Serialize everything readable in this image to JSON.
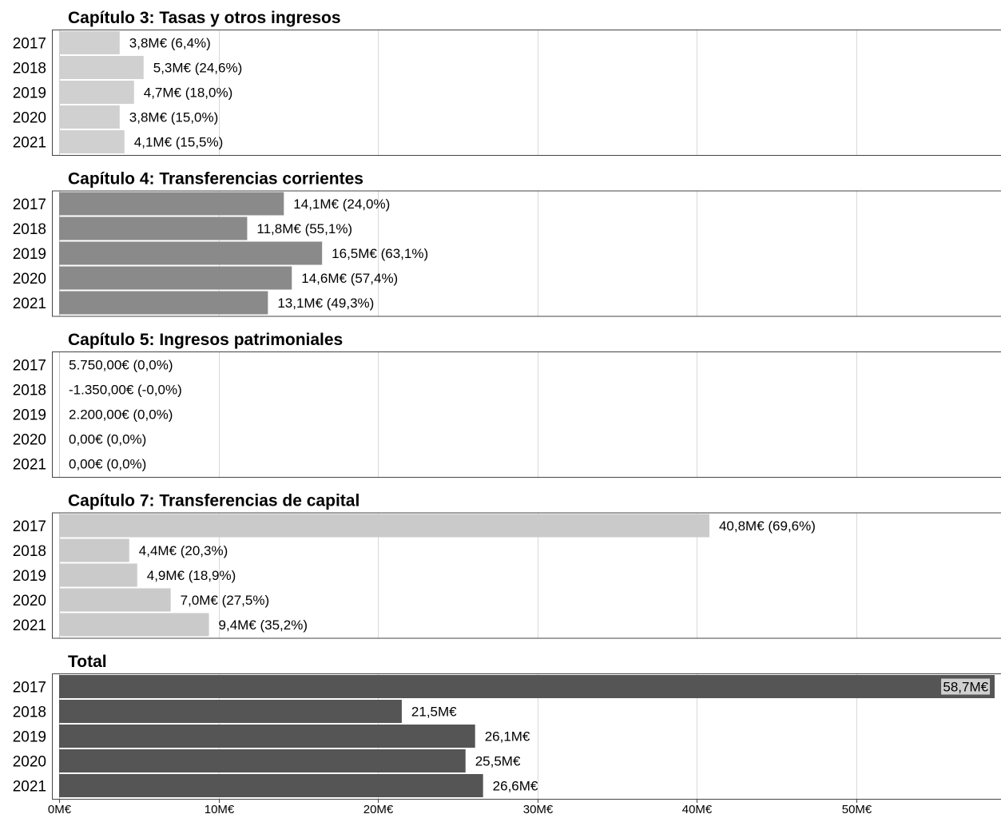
{
  "chart_data": {
    "type": "bar",
    "orientation": "horizontal",
    "x_unit_label": "M€",
    "xlim": [
      0,
      59
    ],
    "x_ticks": [
      {
        "value": 0,
        "label": "0M€"
      },
      {
        "value": 10,
        "label": "10M€"
      },
      {
        "value": 20,
        "label": "20M€"
      },
      {
        "value": 30,
        "label": "30M€"
      },
      {
        "value": 40,
        "label": "40M€"
      },
      {
        "value": 50,
        "label": "50M€"
      }
    ],
    "grid": true,
    "panels": [
      {
        "title": "Capítulo 3: Tasas y otros ingresos",
        "color": "#d0d0d0",
        "categories": [
          "2017",
          "2018",
          "2019",
          "2020",
          "2021"
        ],
        "values": [
          3.8,
          5.3,
          4.7,
          3.8,
          4.1
        ],
        "labels": [
          "3,8M€ (6,4%)",
          "5,3M€ (24,6%)",
          "4,7M€ (18,0%)",
          "3,8M€ (15,0%)",
          "4,1M€ (15,5%)"
        ]
      },
      {
        "title": "Capítulo 4: Transferencias corrientes",
        "color": "#8a8a8a",
        "categories": [
          "2017",
          "2018",
          "2019",
          "2020",
          "2021"
        ],
        "values": [
          14.1,
          11.8,
          16.5,
          14.6,
          13.1
        ],
        "labels": [
          "14,1M€ (24,0%)",
          "11,8M€ (55,1%)",
          "16,5M€ (63,1%)",
          "14,6M€ (57,4%)",
          "13,1M€ (49,3%)"
        ]
      },
      {
        "title": "Capítulo 5: Ingresos patrimoniales",
        "color": "#b0b0b0",
        "categories": [
          "2017",
          "2018",
          "2019",
          "2020",
          "2021"
        ],
        "values": [
          0.00575,
          -0.00135,
          0.0022,
          0,
          0
        ],
        "labels": [
          "5.750,00€ (0,0%)",
          "-1.350,00€ (-0,0%)",
          "2.200,00€ (0,0%)",
          "0,00€ (0,0%)",
          "0,00€ (0,0%)"
        ]
      },
      {
        "title": "Capítulo 7: Transferencias de capital",
        "color": "#cacaca",
        "categories": [
          "2017",
          "2018",
          "2019",
          "2020",
          "2021"
        ],
        "values": [
          40.8,
          4.4,
          4.9,
          7.0,
          9.4
        ],
        "labels": [
          "40,8M€ (69,6%)",
          "4,4M€ (20,3%)",
          "4,9M€ (18,9%)",
          "7,0M€ (27,5%)",
          "9,4M€ (35,2%)"
        ]
      },
      {
        "title": "Total",
        "color": "#555555",
        "categories": [
          "2017",
          "2018",
          "2019",
          "2020",
          "2021"
        ],
        "values": [
          58.7,
          21.5,
          26.1,
          25.5,
          26.6
        ],
        "labels": [
          "58,7M€",
          "21,5M€",
          "26,1M€",
          "25,5M€",
          "26,6M€"
        ]
      }
    ]
  }
}
